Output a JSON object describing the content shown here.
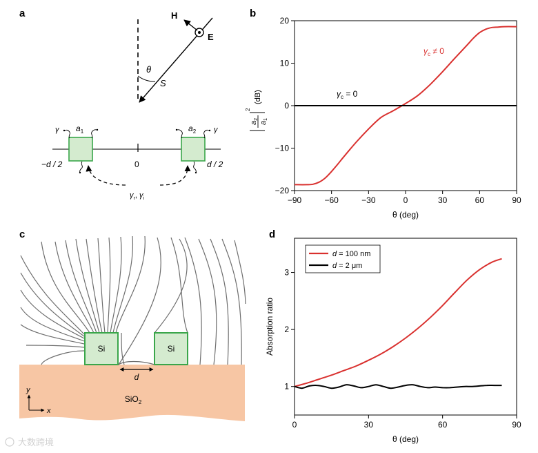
{
  "panel_labels": {
    "a": "a",
    "b": "b",
    "c": "c",
    "d": "d"
  },
  "panel_a": {
    "field_H": "H",
    "field_E": "E",
    "theta": "θ",
    "S": "S",
    "a1": "a",
    "a1_sub": "1",
    "a2": "a",
    "a2_sub": "2",
    "gamma": "γ",
    "left_pos": "−d / 2",
    "zero": "0",
    "right_pos": "d / 2",
    "coupling": "γ",
    "coupling_sub1": "r",
    "coupling_sep": ", ",
    "coupling_gamma2": "γ",
    "coupling_sub2": "i"
  },
  "panel_c": {
    "si_left": "Si",
    "si_right": "Si",
    "gap": "d",
    "substrate": "SiO",
    "substrate_sub": "2",
    "axis_y": "y",
    "axis_x": "x"
  },
  "watermark": "大数跨境",
  "colors": {
    "red": "#d9302e",
    "black": "#000000",
    "green_fill": "#d4ebcf",
    "green_stroke": "#3aa64a",
    "substrate": "#f7c6a4",
    "streamline": "#6e6e6e"
  },
  "chart_data": [
    {
      "panel": "b",
      "type": "line",
      "xlabel": "θ (deg)",
      "ylabel": "|a2/a1|² (dB)",
      "ylabel_parts": {
        "num": "a",
        "num_sub": "2",
        "den": "a",
        "den_sub": "1",
        "exp": "2",
        "unit": "(dB)"
      },
      "xlim": [
        -90,
        90
      ],
      "ylim": [
        -20,
        20
      ],
      "xticks": [
        -90,
        -60,
        -30,
        0,
        30,
        60,
        90
      ],
      "yticks": [
        -20,
        -10,
        0,
        10,
        20
      ],
      "xtick_labels": [
        "−90",
        "−60",
        "−30",
        "0",
        "30",
        "60",
        "90"
      ],
      "ytick_labels": [
        "−20",
        "−10",
        "0",
        "10",
        "20"
      ],
      "series": [
        {
          "name": "γc ≠ 0",
          "label_main": "γ",
          "label_sub": "c",
          "label_rest": " ≠ 0",
          "color": "#d9302e",
          "x": [
            -90,
            -80,
            -75,
            -70,
            -65,
            -60,
            -55,
            -50,
            -40,
            -30,
            -20,
            -10,
            0,
            10,
            20,
            30,
            40,
            50,
            55,
            60,
            65,
            70,
            75,
            80,
            90
          ],
          "y": [
            -18.6,
            -18.6,
            -18.5,
            -18.0,
            -17.0,
            -15.5,
            -13.8,
            -12.0,
            -8.6,
            -5.5,
            -2.8,
            -1.2,
            0.5,
            2.4,
            5.0,
            8.0,
            11.2,
            14.3,
            15.9,
            17.2,
            18.0,
            18.4,
            18.5,
            18.6,
            18.6
          ]
        },
        {
          "name": "γc = 0",
          "label_main": "γ",
          "label_sub": "c",
          "label_rest": " = 0",
          "color": "#000000",
          "x": [
            -90,
            90
          ],
          "y": [
            0,
            0
          ]
        }
      ]
    },
    {
      "panel": "d",
      "type": "line",
      "xlabel": "θ (deg)",
      "ylabel": "Absorption ratio",
      "xlim": [
        0,
        90
      ],
      "ylim": [
        0.5,
        3.6
      ],
      "xticks": [
        0,
        30,
        60,
        90
      ],
      "yticks": [
        1,
        2,
        3
      ],
      "xtick_labels": [
        "0",
        "30",
        "60",
        "90"
      ],
      "ytick_labels": [
        "1",
        "2",
        "3"
      ],
      "legend_position": "top-left",
      "series": [
        {
          "name": "d = 100 nm",
          "label_var": "d",
          "label_rest": " = 100 nm",
          "color": "#d9302e",
          "x": [
            0,
            5,
            10,
            15,
            20,
            25,
            30,
            35,
            40,
            45,
            50,
            55,
            60,
            65,
            70,
            75,
            80,
            84
          ],
          "y": [
            1.0,
            1.06,
            1.13,
            1.2,
            1.28,
            1.36,
            1.46,
            1.57,
            1.7,
            1.85,
            2.02,
            2.21,
            2.42,
            2.65,
            2.87,
            3.05,
            3.18,
            3.24
          ]
        },
        {
          "name": "d = 2 μm",
          "label_var": "d",
          "label_rest": " = 2 μm",
          "color": "#000000",
          "x": [
            0,
            3,
            6,
            9,
            12,
            15,
            18,
            21,
            24,
            27,
            30,
            33,
            36,
            39,
            42,
            45,
            48,
            51,
            54,
            57,
            60,
            63,
            66,
            69,
            72,
            75,
            78,
            81,
            84
          ],
          "y": [
            1.0,
            0.97,
            1.01,
            1.02,
            1.0,
            0.97,
            0.99,
            1.03,
            1.01,
            0.98,
            1.0,
            1.03,
            1.0,
            0.97,
            0.99,
            1.02,
            1.03,
            1.0,
            0.98,
            0.99,
            0.98,
            0.98,
            0.99,
            1.0,
            1.0,
            1.01,
            1.02,
            1.02,
            1.02
          ]
        }
      ]
    }
  ]
}
